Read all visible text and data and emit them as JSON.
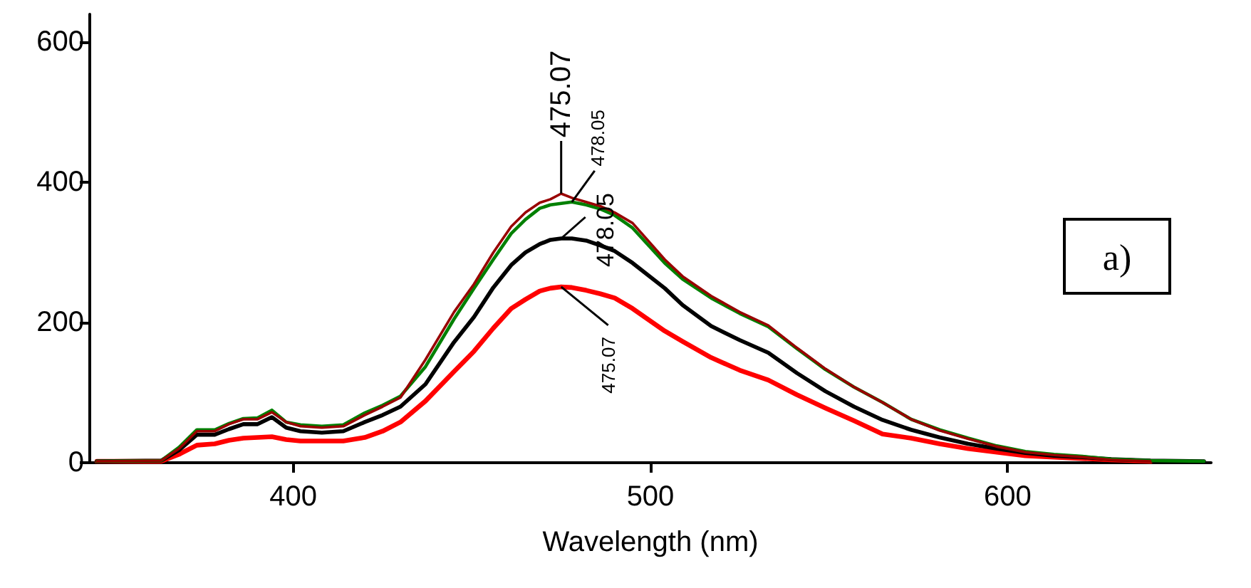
{
  "chart_data": {
    "type": "line",
    "xlabel": "Wavelength (nm)",
    "xlim": [
      343,
      657
    ],
    "xticks": [
      400,
      500,
      600
    ],
    "ylim": [
      0,
      640
    ],
    "yticks": [
      0,
      200,
      400,
      600
    ],
    "grid": false,
    "marker": "none",
    "line_style": "solid",
    "x": [
      345,
      363,
      368,
      373,
      378,
      382,
      386,
      390,
      394,
      398,
      402,
      408,
      414,
      420,
      425,
      430,
      437,
      445,
      450.6,
      456,
      461,
      465,
      469,
      472,
      475,
      478,
      482,
      486,
      490,
      495,
      504,
      509,
      517,
      525,
      533,
      541,
      549,
      557,
      565,
      573,
      581,
      589,
      597,
      605,
      613,
      621,
      629,
      640,
      655
    ],
    "series": [
      {
        "color": "#ff0000",
        "values": [
          2,
          2,
          12,
          25,
          27,
          32,
          35,
          36,
          37,
          33,
          31,
          31,
          31,
          36,
          45,
          58,
          88,
          130,
          159,
          192,
          220,
          233,
          245,
          249,
          251,
          250,
          246,
          241,
          235,
          220,
          188,
          173,
          150,
          132,
          118,
          97,
          78,
          60,
          41,
          35,
          27,
          20,
          15,
          10,
          8,
          6,
          4,
          2,
          null
        ]
      },
      {
        "color": "#000000",
        "values": [
          2,
          3,
          18,
          40,
          40,
          48,
          55,
          55,
          65,
          50,
          45,
          43,
          45,
          58,
          68,
          80,
          112,
          172,
          208,
          250,
          282,
          300,
          312,
          318,
          320,
          320,
          317,
          310,
          302,
          285,
          249,
          225,
          195,
          175,
          157,
          128,
          102,
          80,
          61,
          47,
          36,
          27,
          20,
          14,
          10,
          8,
          5,
          3,
          2
        ]
      },
      {
        "color": "#008000",
        "values": [
          2,
          3,
          22,
          47,
          47,
          56,
          63,
          64,
          75,
          58,
          54,
          52,
          54,
          71,
          82,
          95,
          137,
          205,
          249,
          290,
          327,
          347,
          363,
          368,
          370,
          372,
          368,
          362,
          353,
          335,
          285,
          262,
          235,
          213,
          194,
          163,
          133,
          108,
          86,
          62,
          47,
          35,
          24,
          16,
          12,
          9,
          5,
          3,
          2
        ]
      },
      {
        "color": "#990000",
        "values": [
          2,
          3,
          20,
          45,
          45,
          55,
          62,
          62,
          72,
          58,
          52,
          50,
          52,
          68,
          80,
          93,
          147,
          215,
          255,
          300,
          337,
          357,
          371,
          376,
          384,
          378,
          372,
          366,
          357,
          342,
          290,
          266,
          238,
          215,
          196,
          164,
          134,
          108,
          86,
          62,
          46,
          34,
          23,
          15,
          11,
          8,
          4,
          2,
          null
        ]
      }
    ],
    "annotations": [
      "475.07",
      "478.05",
      "478.05",
      "475.07",
      "a)"
    ]
  }
}
